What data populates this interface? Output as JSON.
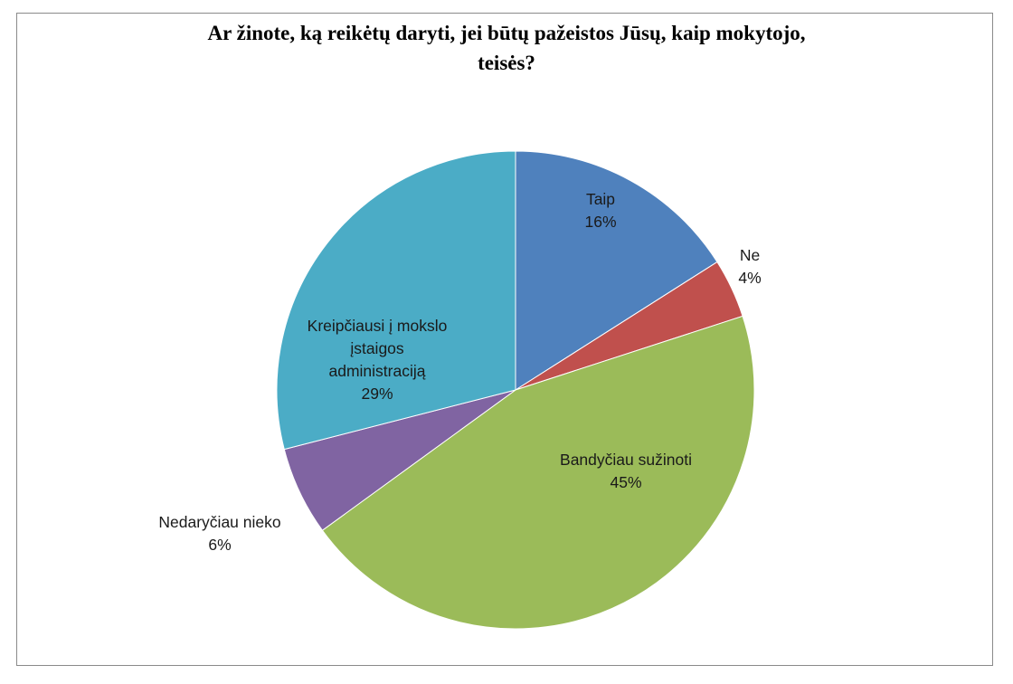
{
  "chart_data": {
    "type": "pie",
    "title": "Ar žinote, ką reikėtų daryti,  jei būtų pažeistos  Jūsų, kaip mokytojo, teisės?",
    "title_lines": [
      "Ar žinote, ką reikėtų daryti,  jei būtų pažeistos  Jūsų, kaip mokytojo,",
      "teisės?"
    ],
    "legend": "none",
    "slices": [
      {
        "label_lines": [
          "Taip"
        ],
        "value": 16,
        "percent_label": "16%",
        "color": "#4F81BD"
      },
      {
        "label_lines": [
          "Ne"
        ],
        "value": 4,
        "percent_label": "4%",
        "color": "#C0504D"
      },
      {
        "label_lines": [
          "Bandyčiau sužinoti"
        ],
        "value": 45,
        "percent_label": "45%",
        "color": "#9BBB59"
      },
      {
        "label_lines": [
          "Nedaryčiau nieko"
        ],
        "value": 6,
        "percent_label": "6%",
        "color": "#8064A2"
      },
      {
        "label_lines": [
          "Kreipčiausi į mokslo",
          "įstaigos",
          "administraciją"
        ],
        "value": 29,
        "percent_label": "29%",
        "color": "#4BACC6"
      }
    ]
  }
}
